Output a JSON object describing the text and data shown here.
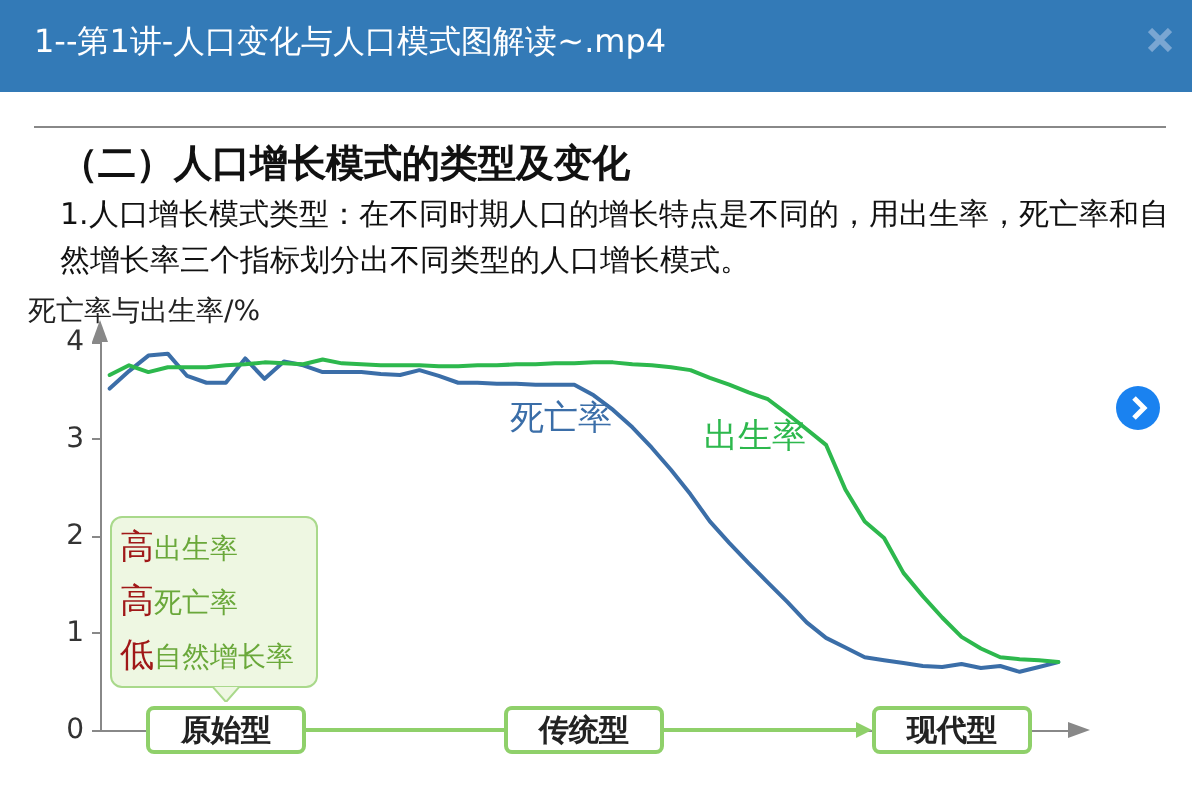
{
  "chart_data": {
    "type": "line",
    "title": "（二）人口增长模式的类型及变化",
    "subtitle": "1.人口增长模式类型：在不同时期人口的增长特点是不同的，用出生率，死亡率和自然增长率三个指标划分出不同类型的人口增长模式。",
    "ylabel": "死亡率与出生率/%",
    "annotations": [
      "1--第1讲-人口变化与人口模式图解读~.mp4",
      "高出生率",
      "高死亡率",
      "低自然增长率",
      "原始型",
      "传统型",
      "现代型"
    ],
    "categories": [
      null,
      null,
      null,
      null,
      null,
      null,
      null,
      null,
      null,
      null,
      null,
      null,
      null,
      null,
      null,
      null,
      null,
      null,
      null,
      null,
      null,
      null,
      null,
      null,
      null,
      null,
      null,
      null,
      null,
      null,
      null,
      null,
      null,
      null,
      null,
      null,
      null,
      null,
      null,
      null,
      null,
      null,
      null,
      null,
      null,
      null,
      null,
      null,
      null,
      null
    ],
    "series": [
      {
        "name": "死亡率",
        "color": "#3b6ea8",
        "values": [
          3.52,
          3.7,
          3.86,
          3.88,
          3.65,
          3.58,
          3.58,
          3.83,
          3.62,
          3.8,
          3.76,
          3.69,
          3.69,
          3.69,
          3.67,
          3.66,
          3.71,
          3.65,
          3.58,
          3.58,
          3.57,
          3.57,
          3.56,
          3.56,
          3.56,
          3.45,
          3.3,
          3.12,
          2.91,
          2.68,
          2.43,
          2.15,
          1.93,
          1.72,
          1.52,
          1.32,
          1.11,
          0.95,
          0.85,
          0.75,
          0.72,
          0.69,
          0.66,
          0.65,
          0.68,
          0.64,
          0.66,
          0.6,
          0.65,
          0.7
        ]
      },
      {
        "name": "出生率",
        "color": "#2db84d",
        "values": [
          3.66,
          3.76,
          3.69,
          3.74,
          3.74,
          3.74,
          3.76,
          3.77,
          3.79,
          3.78,
          3.77,
          3.82,
          3.78,
          3.77,
          3.76,
          3.76,
          3.76,
          3.75,
          3.75,
          3.76,
          3.76,
          3.77,
          3.77,
          3.78,
          3.78,
          3.79,
          3.79,
          3.77,
          3.76,
          3.74,
          3.71,
          3.63,
          3.56,
          3.48,
          3.41,
          3.26,
          3.1,
          2.94,
          2.48,
          2.15,
          1.98,
          1.62,
          1.38,
          1.16,
          0.96,
          0.84,
          0.75,
          0.73,
          0.72,
          0.7
        ]
      }
    ],
    "ylim": [
      0,
      4
    ],
    "yticks": [
      0,
      1,
      2,
      3,
      4
    ],
    "tick_labels": "y",
    "grid": false,
    "legend": false,
    "marker": "none",
    "line_style": "solid"
  }
}
